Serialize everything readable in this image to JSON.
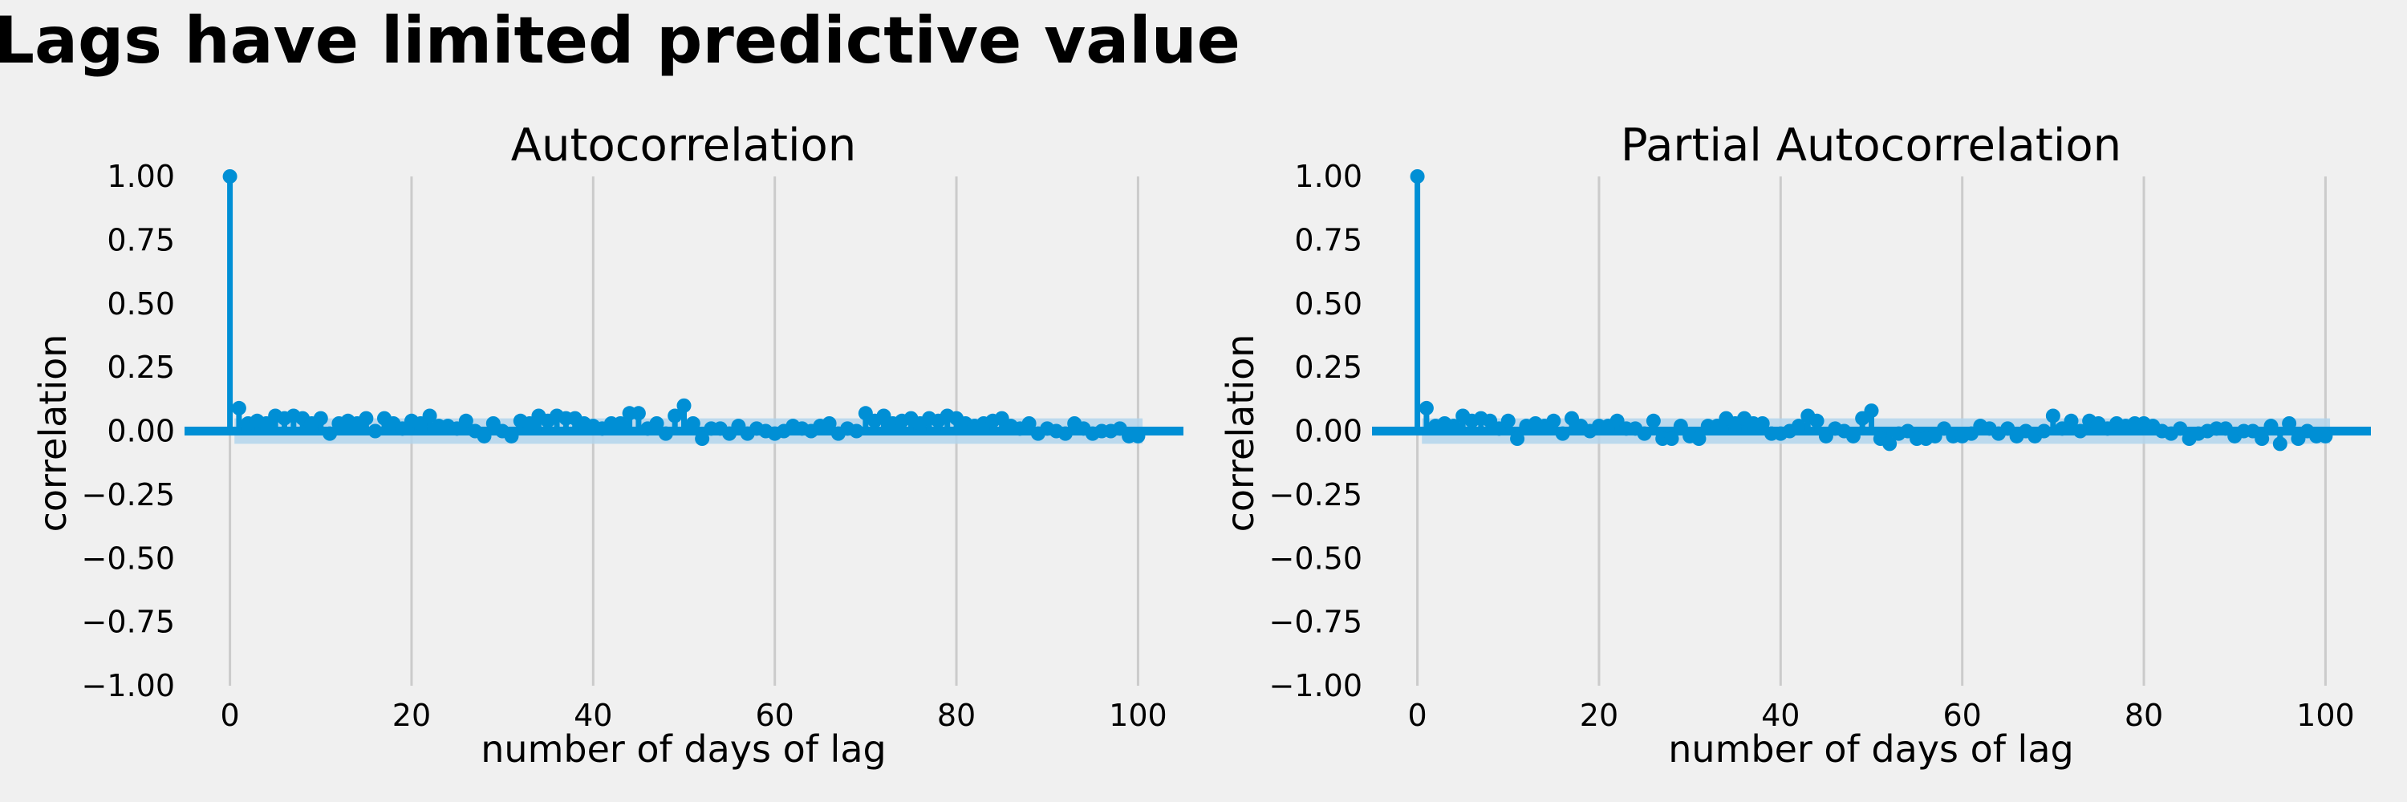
{
  "figure": {
    "suptitle": "Lags have limited predictive value",
    "colors": {
      "background": "#f0f0f0",
      "series": "#008fd5",
      "confidence_band": "#b3d5ec",
      "grid": "#cbcbcb"
    }
  },
  "chart_data": [
    {
      "type": "stem",
      "title": "Autocorrelation",
      "xlabel": "number of days of lag",
      "ylabel": "correlation",
      "xlim": [
        -5,
        105
      ],
      "ylim": [
        -1.0,
        1.0
      ],
      "xticks": [
        0,
        20,
        40,
        60,
        80,
        100
      ],
      "yticks": [
        "1.00",
        "0.75",
        "0.50",
        "0.25",
        "0.00",
        "−0.25",
        "−0.50",
        "−0.75",
        "−1.00"
      ],
      "grid": "vertical",
      "confidence_band": 0.05,
      "x": [
        0,
        1,
        2,
        3,
        4,
        5,
        6,
        7,
        8,
        9,
        10,
        11,
        12,
        13,
        14,
        15,
        16,
        17,
        18,
        19,
        20,
        21,
        22,
        23,
        24,
        25,
        26,
        27,
        28,
        29,
        30,
        31,
        32,
        33,
        34,
        35,
        36,
        37,
        38,
        39,
        40,
        41,
        42,
        43,
        44,
        45,
        46,
        47,
        48,
        49,
        50,
        51,
        52,
        53,
        54,
        55,
        56,
        57,
        58,
        59,
        60,
        61,
        62,
        63,
        64,
        65,
        66,
        67,
        68,
        69,
        70,
        71,
        72,
        73,
        74,
        75,
        76,
        77,
        78,
        79,
        80,
        81,
        82,
        83,
        84,
        85,
        86,
        87,
        88,
        89,
        90,
        91,
        92,
        93,
        94,
        95,
        96,
        97,
        98,
        99,
        100
      ],
      "values": [
        1.0,
        0.09,
        0.03,
        0.04,
        0.03,
        0.06,
        0.05,
        0.06,
        0.05,
        0.03,
        0.05,
        -0.01,
        0.03,
        0.04,
        0.03,
        0.05,
        0.0,
        0.05,
        0.03,
        0.01,
        0.04,
        0.03,
        0.06,
        0.02,
        0.02,
        0.01,
        0.04,
        0.0,
        -0.02,
        0.03,
        0.0,
        -0.02,
        0.04,
        0.03,
        0.06,
        0.04,
        0.06,
        0.05,
        0.05,
        0.03,
        0.02,
        0.01,
        0.03,
        0.03,
        0.07,
        0.07,
        0.01,
        0.03,
        -0.01,
        0.06,
        0.1,
        0.03,
        -0.03,
        0.01,
        0.01,
        -0.01,
        0.02,
        -0.01,
        0.01,
        0.0,
        -0.01,
        0.0,
        0.02,
        0.01,
        0.0,
        0.02,
        0.03,
        -0.01,
        0.01,
        0.0,
        0.07,
        0.04,
        0.06,
        0.03,
        0.04,
        0.05,
        0.03,
        0.05,
        0.04,
        0.06,
        0.05,
        0.03,
        0.02,
        0.03,
        0.04,
        0.05,
        0.02,
        0.01,
        0.03,
        -0.01,
        0.01,
        0.0,
        -0.01,
        0.03,
        0.01,
        -0.01,
        0.0,
        0.0,
        0.01,
        -0.02,
        -0.02
      ]
    },
    {
      "type": "stem",
      "title": "Partial Autocorrelation",
      "xlabel": "number of days of lag",
      "ylabel": "correlation",
      "xlim": [
        -5,
        105
      ],
      "ylim": [
        -1.0,
        1.0
      ],
      "xticks": [
        0,
        20,
        40,
        60,
        80,
        100
      ],
      "yticks": [
        "1.00",
        "0.75",
        "0.50",
        "0.25",
        "0.00",
        "−0.25",
        "−0.50",
        "−0.75",
        "−1.00"
      ],
      "grid": "vertical",
      "confidence_band": 0.05,
      "x": [
        0,
        1,
        2,
        3,
        4,
        5,
        6,
        7,
        8,
        9,
        10,
        11,
        12,
        13,
        14,
        15,
        16,
        17,
        18,
        19,
        20,
        21,
        22,
        23,
        24,
        25,
        26,
        27,
        28,
        29,
        30,
        31,
        32,
        33,
        34,
        35,
        36,
        37,
        38,
        39,
        40,
        41,
        42,
        43,
        44,
        45,
        46,
        47,
        48,
        49,
        50,
        51,
        52,
        53,
        54,
        55,
        56,
        57,
        58,
        59,
        60,
        61,
        62,
        63,
        64,
        65,
        66,
        67,
        68,
        69,
        70,
        71,
        72,
        73,
        74,
        75,
        76,
        77,
        78,
        79,
        80,
        81,
        82,
        83,
        84,
        85,
        86,
        87,
        88,
        89,
        90,
        91,
        92,
        93,
        94,
        95,
        96,
        97,
        98,
        99,
        100
      ],
      "values": [
        1.0,
        0.09,
        0.02,
        0.03,
        0.02,
        0.06,
        0.04,
        0.05,
        0.04,
        0.01,
        0.04,
        -0.03,
        0.02,
        0.03,
        0.02,
        0.04,
        -0.01,
        0.05,
        0.02,
        0.0,
        0.02,
        0.02,
        0.04,
        0.01,
        0.01,
        -0.01,
        0.04,
        -0.03,
        -0.03,
        0.02,
        -0.02,
        -0.03,
        0.02,
        0.02,
        0.05,
        0.03,
        0.05,
        0.03,
        0.03,
        -0.01,
        -0.01,
        0.0,
        0.02,
        0.06,
        0.04,
        -0.02,
        0.01,
        0.0,
        -0.02,
        0.05,
        0.08,
        -0.03,
        -0.05,
        -0.01,
        0.0,
        -0.03,
        -0.03,
        -0.02,
        0.01,
        -0.02,
        -0.02,
        -0.01,
        0.02,
        0.01,
        -0.01,
        0.01,
        -0.02,
        0.0,
        -0.02,
        0.0,
        0.06,
        0.01,
        0.04,
        0.0,
        0.04,
        0.03,
        0.01,
        0.03,
        0.02,
        0.03,
        0.03,
        0.02,
        0.0,
        -0.01,
        0.01,
        -0.03,
        -0.01,
        0.0,
        0.01,
        0.01,
        -0.02,
        0.0,
        0.0,
        -0.03,
        0.02,
        -0.05,
        0.03,
        -0.03,
        0.0,
        -0.02,
        -0.02
      ]
    }
  ]
}
